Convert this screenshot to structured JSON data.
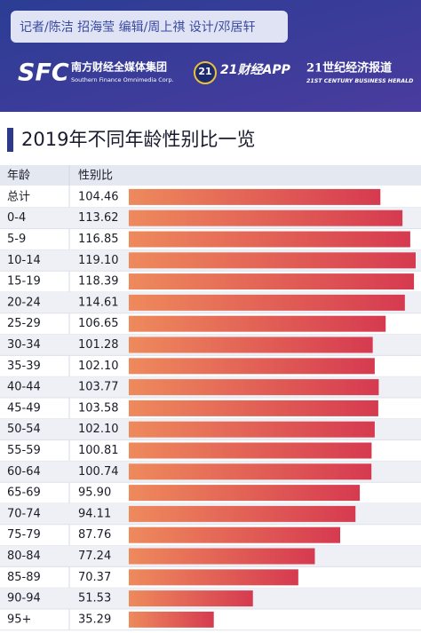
{
  "header": {
    "credits": "记者/陈洁  招海莹  编辑/周上祺  设计/邓居轩",
    "logo1": {
      "mark": "SFC",
      "name": "南方财经全媒体集团",
      "english": "Southern Finance Omnimedia Corp."
    },
    "logo2": {
      "badge": "21",
      "name": "21财经APP"
    },
    "logo3": {
      "name": "21世纪经济报道",
      "english": "21ST CENTURY BUSINESS HERALD"
    }
  },
  "chart_data": {
    "type": "bar",
    "orientation": "horizontal",
    "title": "2019年不同年龄性别比一览",
    "category_header": "年龄",
    "value_header": "性别比",
    "categories": [
      "总计",
      "0-4",
      "5-9",
      "10-14",
      "15-19",
      "20-24",
      "25-29",
      "30-34",
      "35-39",
      "40-44",
      "45-49",
      "50-54",
      "55-59",
      "60-64",
      "65-69",
      "70-74",
      "75-79",
      "80-84",
      "85-89",
      "90-94",
      "95+"
    ],
    "values": [
      104.46,
      113.62,
      116.85,
      119.1,
      118.39,
      114.61,
      106.65,
      101.28,
      102.1,
      103.77,
      103.58,
      102.1,
      100.81,
      100.74,
      95.9,
      94.11,
      87.76,
      77.24,
      70.37,
      51.53,
      35.29
    ],
    "value_labels": [
      "104.46",
      "113.62",
      "116.85",
      "119.10",
      "118.39",
      "114.61",
      "106.65",
      "101.28",
      "102.10",
      "103.77",
      "103.58",
      "102.10",
      "100.81",
      "100.74",
      "95.90",
      "94.11",
      "87.76",
      "77.24",
      "70.37",
      "51.53",
      "35.29"
    ],
    "color": [
      "#ee8a5c",
      "#d63a50"
    ]
  }
}
